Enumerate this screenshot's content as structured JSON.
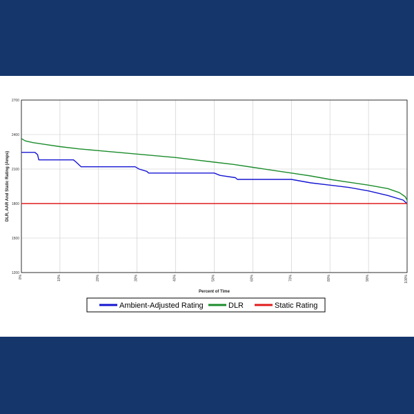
{
  "chart_data": {
    "type": "line",
    "xlabel": "Percent of Time",
    "ylabel": "DLR, AAR And Static Rating (Amps)",
    "xlim": [
      0,
      100
    ],
    "ylim": [
      1200,
      2700
    ],
    "y_ticks": [
      "1200",
      "1500",
      "1800",
      "2100",
      "2400",
      "2700"
    ],
    "x_ticks": [
      "0%",
      "10%",
      "20%",
      "30%",
      "40%",
      "50%",
      "60%",
      "70%",
      "80%",
      "90%",
      "100%"
    ],
    "x_tick_values": [
      0,
      10,
      20,
      30,
      40,
      50,
      60,
      70,
      80,
      90,
      100
    ],
    "grid": true,
    "legend_position": "bottom",
    "series": [
      {
        "name": "Ambient-Adjusted Rating",
        "color": "#1414d2",
        "x": [
          0,
          3.5,
          4.2,
          4.5,
          13.5,
          14.2,
          15.5,
          29.5,
          30.5,
          32.5,
          33.0,
          50.0,
          51.5,
          55.5,
          56.0,
          70.0,
          75.0,
          80.0,
          85.0,
          90.0,
          95.0,
          99.0,
          99.6,
          100
        ],
        "y": [
          2245,
          2245,
          2225,
          2180,
          2180,
          2160,
          2120,
          2120,
          2100,
          2080,
          2065,
          2065,
          2045,
          2025,
          2010,
          2010,
          1980,
          1960,
          1940,
          1910,
          1870,
          1830,
          1810,
          1800
        ]
      },
      {
        "name": "DLR",
        "color": "#1a8c2a",
        "x": [
          0,
          1,
          3,
          6,
          10,
          15,
          20,
          25,
          30,
          35,
          40,
          45,
          50,
          55,
          60,
          65,
          70,
          75,
          80,
          85,
          90,
          95,
          98,
          99.5,
          100
        ],
        "y": [
          2365,
          2345,
          2330,
          2315,
          2295,
          2275,
          2260,
          2245,
          2230,
          2215,
          2200,
          2180,
          2160,
          2140,
          2115,
          2090,
          2065,
          2040,
          2010,
          1985,
          1960,
          1930,
          1895,
          1860,
          1830
        ]
      },
      {
        "name": "Static Rating",
        "color": "#e01b1b",
        "x": [
          0,
          100
        ],
        "y": [
          1800,
          1800
        ]
      }
    ]
  }
}
